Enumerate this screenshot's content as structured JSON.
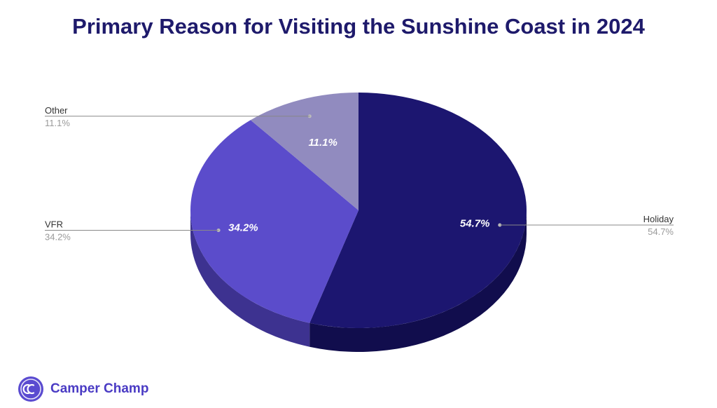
{
  "chart_data": {
    "type": "pie",
    "title": "Primary Reason for Visiting the Sunshine Coast in 2024",
    "slices": [
      {
        "name": "Holiday",
        "value": 54.7,
        "label": "54.7%",
        "color": "#1c1670",
        "side_color": "#110d4d"
      },
      {
        "name": "VFR",
        "value": 34.2,
        "label": "34.2%",
        "color": "#5b4ccb",
        "side_color": "#3d3290"
      },
      {
        "name": "Other",
        "value": 11.1,
        "label": "11.1%",
        "color": "#918bbf",
        "side_color": "#6e689a"
      }
    ],
    "legend": "external-callouts"
  },
  "brand": {
    "name": "Camper Champ",
    "logo_icon": "cc-logo-icon",
    "logo_color": "#5a4bd0"
  }
}
